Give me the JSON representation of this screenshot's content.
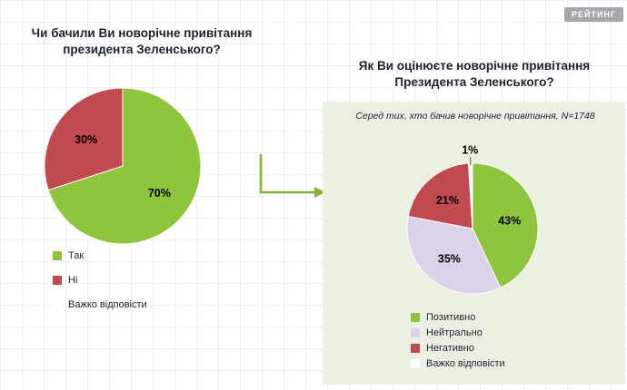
{
  "logo": {
    "text": "РЕЙТИНГ"
  },
  "chart_data": [
    {
      "type": "pie",
      "title": "Чи бачили Ви новорічне привітання президента Зеленського?",
      "labels": [
        "Так",
        "Ні",
        "Важко відповісти"
      ],
      "values": [
        70,
        30,
        0
      ],
      "value_format": "percent",
      "colors": [
        "#8fc43d",
        "#c04a50",
        "#ffffff"
      ],
      "legend_position": "bottom-left"
    },
    {
      "type": "pie",
      "title": "Як Ви оцінюєте новорічне привітання Президента Зеленського?",
      "subtitle": "Серед тих, хто бачив новорічне привітання, N=1748",
      "labels": [
        "Позитивно",
        "Нейтрально",
        "Негативно",
        "Важко відповісти"
      ],
      "values": [
        43,
        35,
        21,
        1
      ],
      "value_format": "percent",
      "colors": [
        "#8fc43d",
        "#d9d2e8",
        "#c04a50",
        "#ffffff"
      ],
      "legend_position": "bottom"
    }
  ]
}
